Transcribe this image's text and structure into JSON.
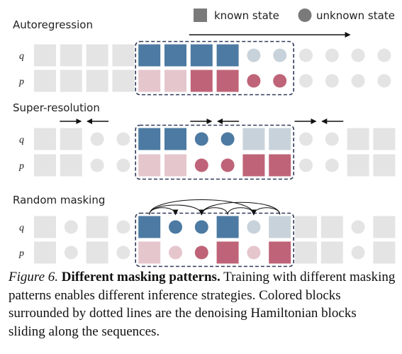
{
  "legend": {
    "known_label": "known state",
    "unknown_label": "unknown state"
  },
  "colors": {
    "gray_block": "#e4e4e4",
    "gray_circle": "#e4e4e4",
    "q_known": "#4c7aa2",
    "q_known_faded": "#c8d2da",
    "p_known": "#bf6478",
    "p_known_faded": "#e6c6cd",
    "frame": "#2f3a58",
    "legend_gray": "#7a7a7a"
  },
  "row_labels": {
    "q": "q",
    "p": "p"
  },
  "panels": [
    {
      "id": "autoregression",
      "title": "Autoregression",
      "q": [
        "gb",
        "gb",
        "gb",
        "gb",
        "qb",
        "qb",
        "qb",
        "qb",
        "qcf",
        "qcf",
        "gc",
        "gc",
        "gc",
        "gc"
      ],
      "p": [
        "gb",
        "gb",
        "gb",
        "gb",
        "pbf",
        "pbf",
        "pb",
        "pb",
        "pc",
        "pc",
        "gc",
        "gc",
        "gc",
        "gc"
      ],
      "frame_start": 4,
      "frame_end": 9,
      "arrows": [
        "long-right"
      ]
    },
    {
      "id": "super-resolution",
      "title": "Super-resolution",
      "q": [
        "gb",
        "gb",
        "gc",
        "gc",
        "qb",
        "qb",
        "qc",
        "qc",
        "qbf",
        "qbf",
        "gc",
        "gc",
        "gb",
        "gb"
      ],
      "p": [
        "gb",
        "gb",
        "gc",
        "gc",
        "pbf",
        "pbf",
        "pc",
        "pc",
        "pb",
        "pb",
        "gc",
        "gc",
        "gb",
        "gb"
      ],
      "frame_start": 4,
      "frame_end": 9,
      "arrows": [
        "right-1",
        "left-2",
        "right-6",
        "left-7",
        "right-10",
        "left-11"
      ]
    },
    {
      "id": "random-masking",
      "title": "Random masking",
      "q": [
        "gb",
        "gc",
        "gb",
        "gc",
        "qb",
        "qc",
        "qc",
        "qb",
        "qcf",
        "qbf",
        "gb",
        "gb",
        "gc",
        "gb"
      ],
      "p": [
        "gb",
        "gc",
        "gb",
        "gc",
        "pbf",
        "pcf",
        "pc",
        "pb",
        "pcf",
        "pb",
        "gb",
        "gb",
        "gc",
        "gb"
      ],
      "frame_start": 4,
      "frame_end": 9,
      "arrows": []
    }
  ],
  "caption": {
    "figure_label": "Figure 6.",
    "bold_title": "Different masking patterns.",
    "body": "Training with different masking patterns enables different inference strategies. Colored blocks surrounded by dotted lines are the denoising Hamiltonian blocks sliding along the sequences."
  }
}
